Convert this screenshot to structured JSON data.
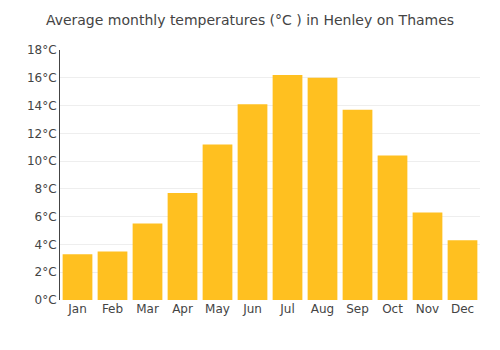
{
  "chart_data": {
    "type": "bar",
    "title": "Average monthly temperatures (°C ) in Henley on Thames",
    "categories": [
      "Jan",
      "Feb",
      "Mar",
      "Apr",
      "May",
      "Jun",
      "Jul",
      "Aug",
      "Sep",
      "Oct",
      "Nov",
      "Dec"
    ],
    "values": [
      3.3,
      3.5,
      5.5,
      7.7,
      11.2,
      14.1,
      16.2,
      16.0,
      13.7,
      10.4,
      6.3,
      4.3
    ],
    "color": "#FFC020",
    "ylim": [
      0,
      18
    ],
    "yticks": [
      {
        "value": 0,
        "label": "0°C"
      },
      {
        "value": 2,
        "label": "2°C"
      },
      {
        "value": 4,
        "label": "4°C"
      },
      {
        "value": 6,
        "label": "6°C"
      },
      {
        "value": 8,
        "label": "8°C"
      },
      {
        "value": 10,
        "label": "10°C"
      },
      {
        "value": 12,
        "label": "12°C"
      },
      {
        "value": 14,
        "label": "14°C"
      },
      {
        "value": 16,
        "label": "16°C"
      },
      {
        "value": 18,
        "label": "18°C"
      }
    ],
    "grid": true
  }
}
